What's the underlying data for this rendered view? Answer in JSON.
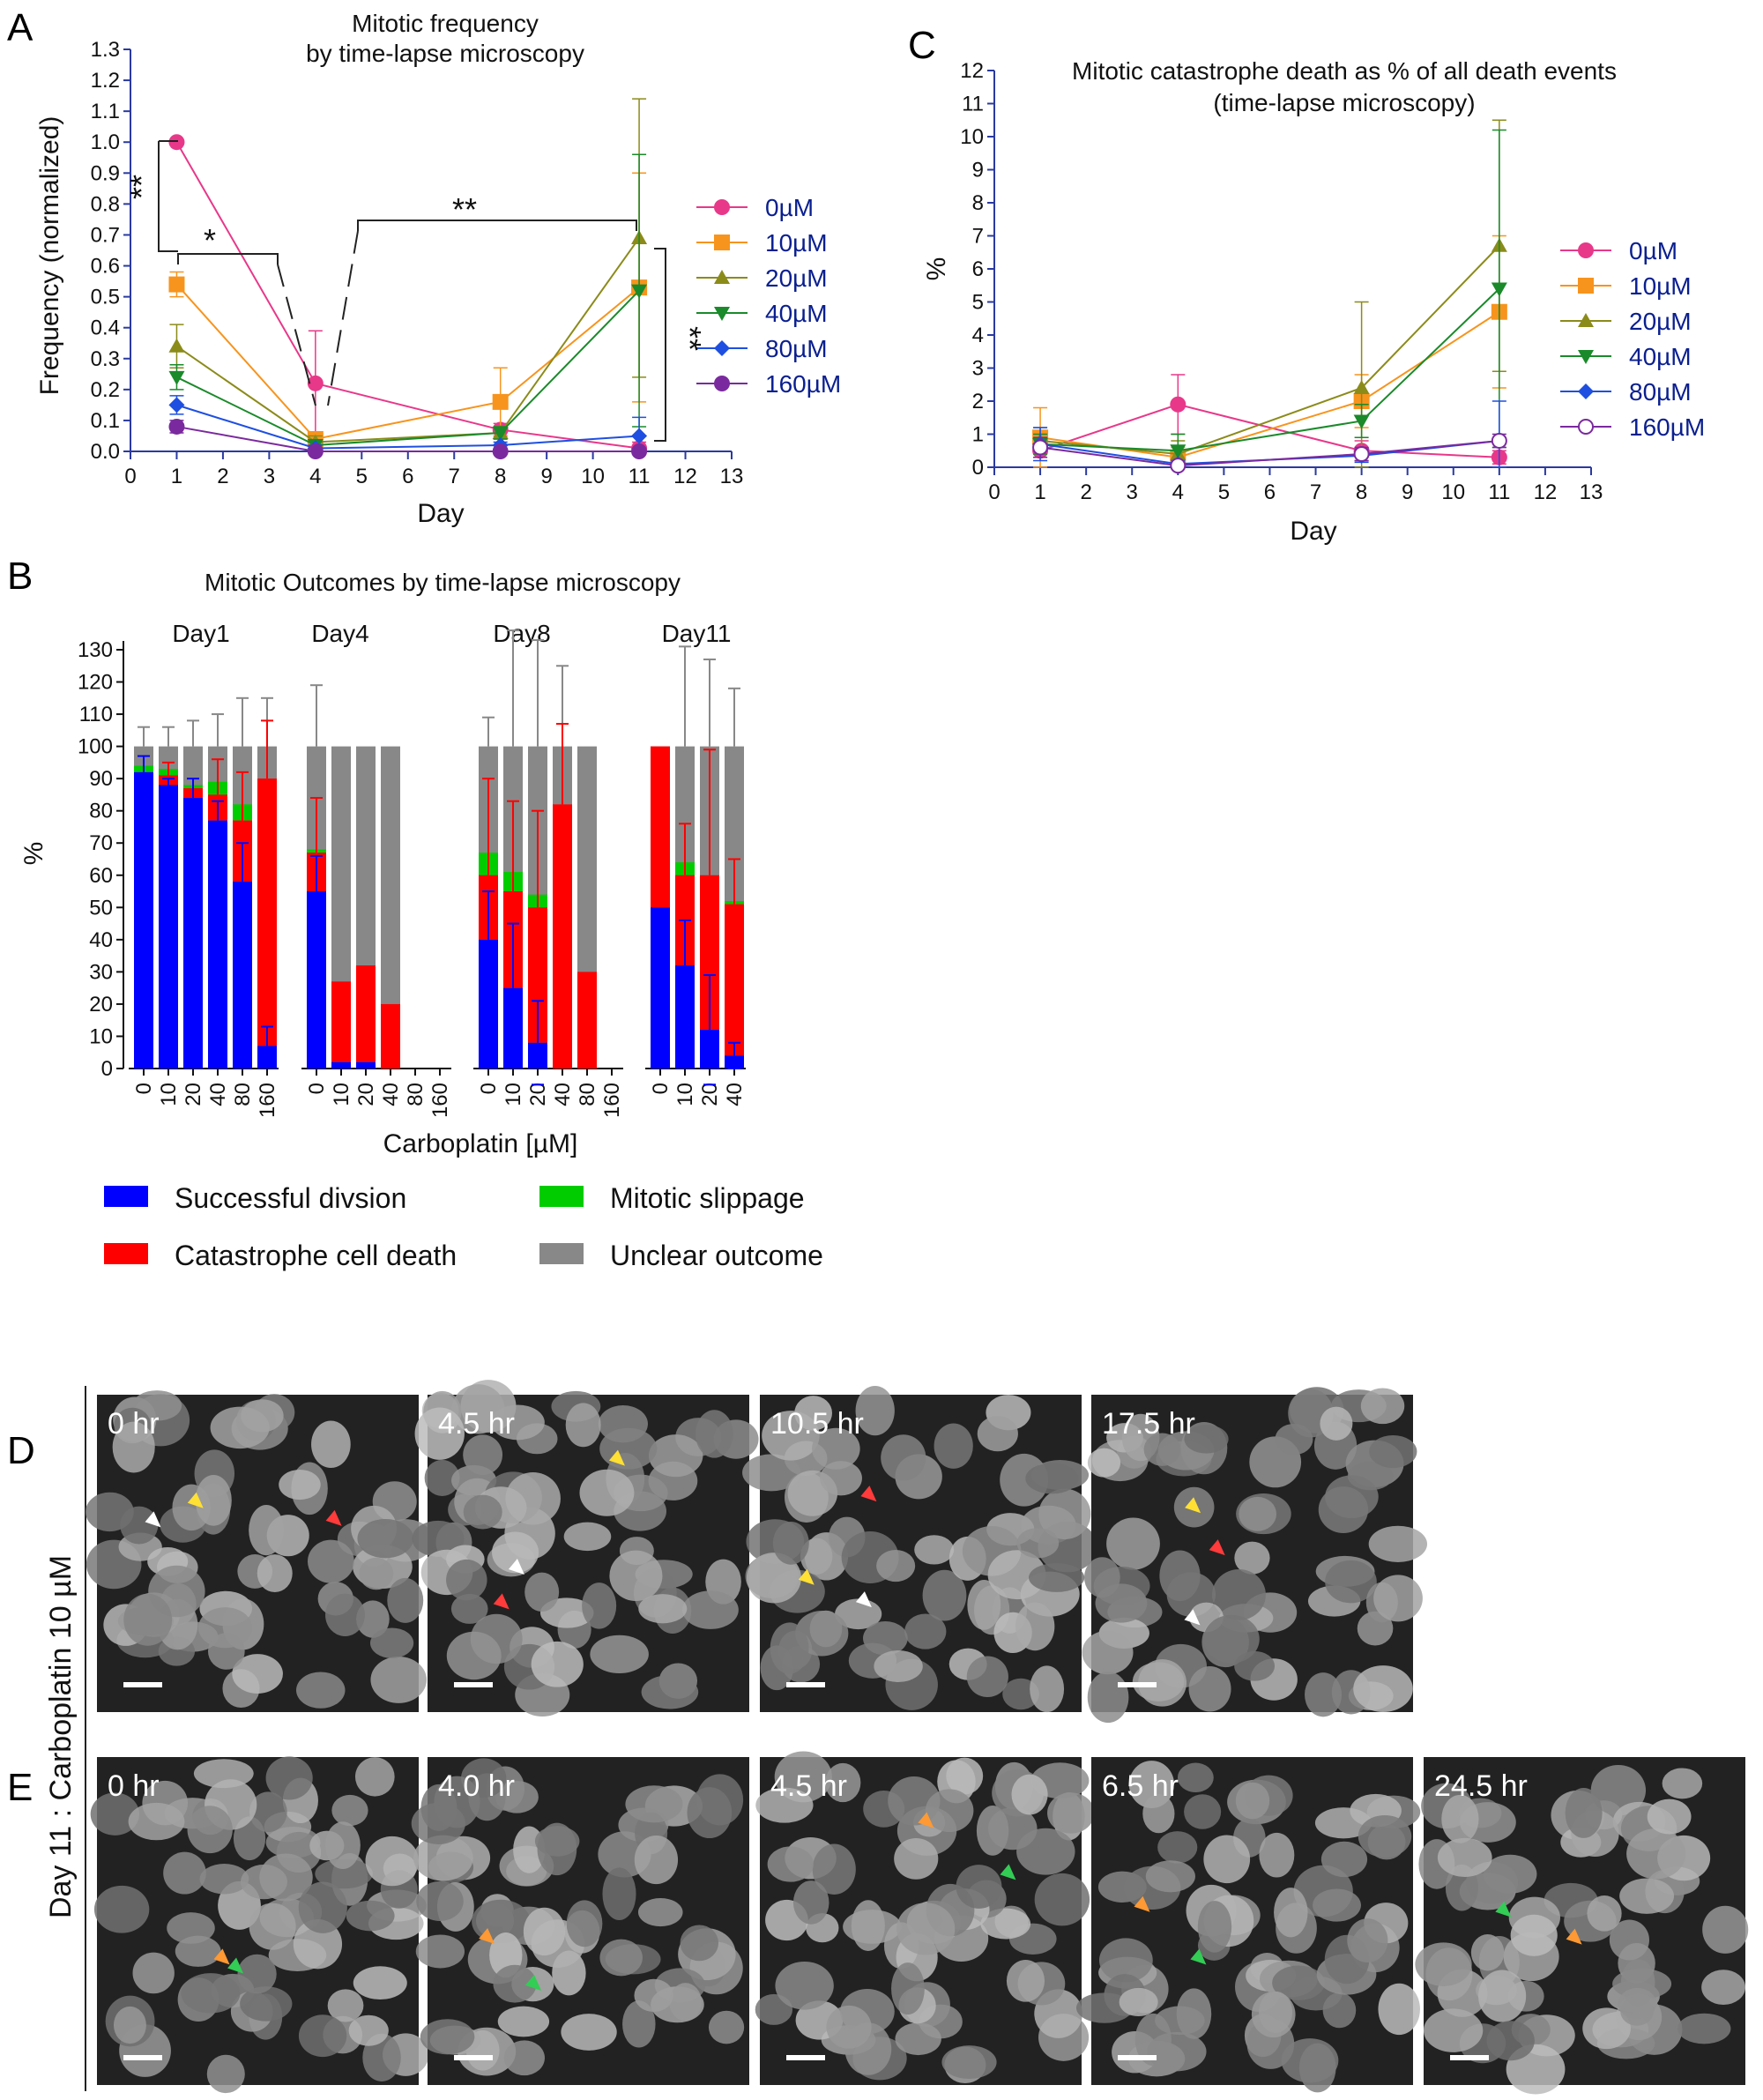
{
  "panels": {
    "A": "A",
    "B": "B",
    "C": "C",
    "D": "D",
    "E": "E"
  },
  "colors": {
    "0uM": "#e8388a",
    "10uM": "#f7941d",
    "20uM": "#8b8b1a",
    "40uM": "#1a8a2a",
    "80uM": "#1e4fe0",
    "160uM": "#7a2a9e",
    "success": "#0000ff",
    "catastrophe": "#ff0000",
    "slippage": "#00cc00",
    "unclear": "#888888"
  },
  "chart_data": [
    {
      "id": "A",
      "type": "line",
      "title": "Mitotic frequency",
      "subtitle": "by time-lapse microscopy",
      "xlabel": "Day",
      "ylabel": "Frequency (normalized)",
      "xlim": [
        0,
        13
      ],
      "ylim": [
        0,
        1.3
      ],
      "xticks": [
        "0",
        "1",
        "2",
        "3",
        "4",
        "5",
        "6",
        "7",
        "8",
        "9",
        "10",
        "11",
        "12",
        "13"
      ],
      "yticks": [
        "0.0",
        "0.1",
        "0.2",
        "0.3",
        "0.4",
        "0.5",
        "0.6",
        "0.7",
        "0.8",
        "0.9",
        "1.0",
        "1.1",
        "1.2",
        "1.3"
      ],
      "x": [
        1,
        4,
        8,
        11
      ],
      "series": [
        {
          "name": "0µM",
          "values": [
            1.0,
            0.22,
            0.07,
            0.01
          ],
          "err": [
            0,
            0.17,
            0.02,
            0.02
          ],
          "marker": "circle",
          "color": "#e8388a"
        },
        {
          "name": "10µM",
          "values": [
            0.54,
            0.04,
            0.16,
            0.53
          ],
          "err": [
            0.04,
            0.02,
            0.11,
            0.37
          ],
          "marker": "square",
          "color": "#f7941d"
        },
        {
          "name": "20µM",
          "values": [
            0.34,
            0.03,
            0.06,
            0.69
          ],
          "err": [
            0.07,
            0.02,
            0.02,
            0.45
          ],
          "marker": "triangle-up",
          "color": "#8b8b1a"
        },
        {
          "name": "40µM",
          "values": [
            0.24,
            0.02,
            0.06,
            0.52
          ],
          "err": [
            0.04,
            0.01,
            0.02,
            0.44
          ],
          "marker": "triangle-down",
          "color": "#1a8a2a"
        },
        {
          "name": "80µM",
          "values": [
            0.15,
            0.01,
            0.02,
            0.05
          ],
          "err": [
            0.03,
            0.01,
            0.01,
            0.06
          ],
          "marker": "diamond",
          "color": "#1e4fe0"
        },
        {
          "name": "160µM",
          "values": [
            0.08,
            0.0,
            0.0,
            0.0
          ],
          "err": [
            0.02,
            0.005,
            0.005,
            0.005
          ],
          "marker": "circle",
          "color": "#7a2a9e"
        }
      ],
      "significance": [
        "**",
        "*",
        "**",
        "**"
      ]
    },
    {
      "id": "C",
      "type": "line",
      "title": "Mitotic catastrophe death as % of all death events",
      "subtitle": "(time-lapse microscopy)",
      "xlabel": "Day",
      "ylabel": "%",
      "xlim": [
        0,
        13
      ],
      "ylim": [
        0,
        12
      ],
      "xticks": [
        "0",
        "1",
        "2",
        "3",
        "4",
        "5",
        "6",
        "7",
        "8",
        "9",
        "10",
        "11",
        "12",
        "13"
      ],
      "yticks": [
        "0",
        "1",
        "2",
        "3",
        "4",
        "5",
        "6",
        "7",
        "8",
        "9",
        "10",
        "11",
        "12"
      ],
      "x": [
        1,
        4,
        8,
        11
      ],
      "series": [
        {
          "name": "0µM",
          "values": [
            0.5,
            1.9,
            0.5,
            0.3
          ],
          "err": [
            0.2,
            0.9,
            0.3,
            0.2
          ],
          "marker": "circle",
          "color": "#e8388a"
        },
        {
          "name": "10µM",
          "values": [
            0.9,
            0.3,
            2.0,
            4.7
          ],
          "err": [
            0.9,
            0.3,
            0.8,
            2.3
          ],
          "marker": "square",
          "color": "#f7941d"
        },
        {
          "name": "20µM",
          "values": [
            0.8,
            0.4,
            2.4,
            6.7
          ],
          "err": [
            0.4,
            0.4,
            2.6,
            3.8
          ],
          "marker": "triangle-up",
          "color": "#8b8b1a"
        },
        {
          "name": "40µM",
          "values": [
            0.7,
            0.5,
            1.4,
            5.4
          ],
          "err": [
            0.3,
            0.5,
            0.5,
            4.8
          ],
          "marker": "triangle-down",
          "color": "#1a8a2a"
        },
        {
          "name": "80µM",
          "values": [
            0.7,
            0.1,
            0.35,
            0.8
          ],
          "err": [
            0.5,
            0.1,
            0.2,
            1.2
          ],
          "marker": "diamond",
          "color": "#1e4fe0"
        },
        {
          "name": "160µM",
          "values": [
            0.6,
            0.05,
            0.4,
            0.8
          ],
          "err": [
            0.3,
            0.05,
            0.2,
            0.2
          ],
          "marker": "circle-open",
          "color": "#7a2a9e"
        }
      ]
    },
    {
      "id": "B",
      "type": "bar",
      "stacked": true,
      "title": "Mitotic Outcomes by time-lapse microscopy",
      "xlabel": "Carboplatin [µM]",
      "ylabel": "%",
      "ylim": [
        0,
        135
      ],
      "yticks": [
        "0",
        "10",
        "20",
        "30",
        "40",
        "50",
        "60",
        "70",
        "80",
        "90",
        "100",
        "110",
        "120",
        "130"
      ],
      "groups": [
        {
          "name": "Day1",
          "categories": [
            "0",
            "10",
            "20",
            "40",
            "80",
            "160"
          ],
          "success": [
            92,
            88,
            84,
            77,
            58,
            7
          ],
          "catastrophe": [
            0,
            3,
            3,
            8,
            19,
            83
          ],
          "slippage": [
            2,
            2,
            1,
            4,
            5,
            0
          ],
          "unclear_err": [
            106,
            106,
            108,
            110,
            115,
            115
          ],
          "success_err": [
            97,
            90,
            90,
            83,
            70,
            13
          ],
          "catastrophe_err": [
            0,
            95,
            0,
            96,
            92,
            108
          ]
        },
        {
          "name": "Day4",
          "categories": [
            "0",
            "10",
            "20",
            "40",
            "80",
            "160"
          ],
          "success": [
            55,
            2,
            2,
            0,
            0,
            0
          ],
          "catastrophe": [
            12,
            25,
            30,
            20,
            0,
            0
          ],
          "slippage": [
            1,
            0,
            0,
            0,
            0,
            0
          ],
          "unclear_err": [
            119,
            100,
            100,
            100,
            0,
            0
          ],
          "success_err": [
            66,
            0,
            0,
            0,
            0,
            0
          ],
          "catastrophe_err": [
            84,
            0,
            0,
            0,
            0,
            0
          ]
        },
        {
          "name": "Day8",
          "categories": [
            "0",
            "10",
            "20",
            "40",
            "80",
            "160"
          ],
          "success": [
            40,
            25,
            8,
            0,
            0,
            0
          ],
          "catastrophe": [
            20,
            30,
            42,
            82,
            30,
            0
          ],
          "slippage": [
            7,
            6,
            4,
            0,
            0,
            0
          ],
          "unclear_err": [
            109,
            136,
            133,
            125,
            100,
            0
          ],
          "success_err": [
            55,
            45,
            21,
            0,
            0,
            0
          ],
          "catastrophe_err": [
            90,
            83,
            80,
            107,
            0,
            0
          ]
        },
        {
          "name": "Day11",
          "categories": [
            "0",
            "10",
            "20",
            "40"
          ],
          "success": [
            50,
            32,
            12,
            4
          ],
          "catastrophe": [
            50,
            28,
            48,
            47
          ],
          "slippage": [
            0,
            4,
            0,
            1
          ],
          "unclear_err": [
            100,
            131,
            127,
            118
          ],
          "success_err": [
            0,
            46,
            29,
            8
          ],
          "catastrophe_err": [
            0,
            76,
            99,
            65
          ]
        }
      ],
      "legend": [
        "Successful divsion",
        "Mitotic slippage",
        "Catastrophe cell death",
        "Unclear outcome"
      ]
    }
  ],
  "micrographs": {
    "side_label": "Day 11 : Carboplatin 10 µM",
    "rowD": [
      "0 hr",
      "4.5 hr",
      "10.5 hr",
      "17.5 hr"
    ],
    "rowE": [
      "0 hr",
      "4.0 hr",
      "4.5 hr",
      "6.5 hr",
      "24.5 hr"
    ]
  }
}
